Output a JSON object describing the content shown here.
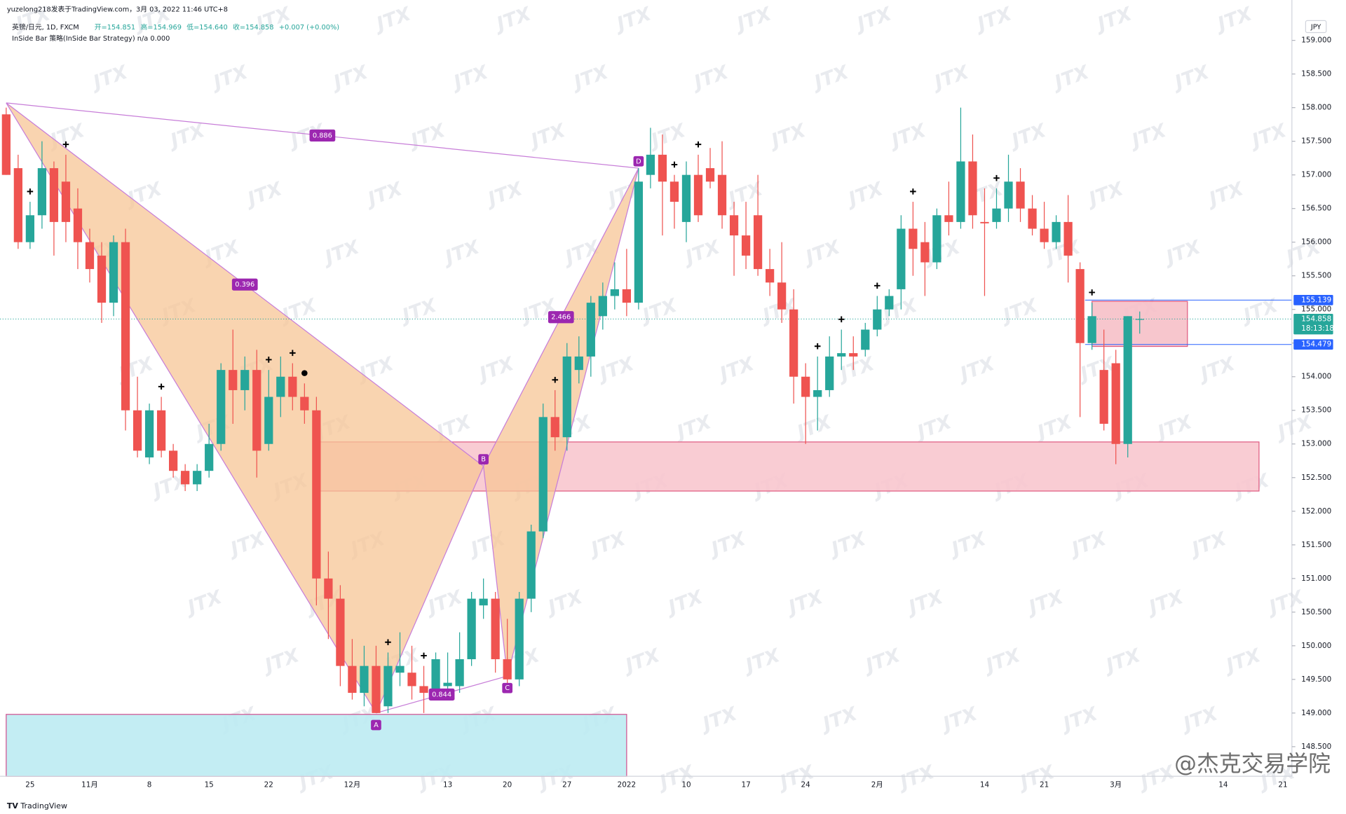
{
  "header": {
    "publisher": "yuzelong218发表于TradingView.com，3月 03, 2022 11:46 UTC+8",
    "symbol": "英镑/日元, 1D, FXCM",
    "ohlc_legend": [
      "开=154.851",
      "高=154.969",
      "低=154.640",
      "收=154.858",
      "+0.007 (+0.00%)"
    ],
    "strategy": "InSide Bar 策略(InSide Bar Strategy)  n/a  0.000",
    "currency": "JPY"
  },
  "footer": {
    "brand": "TradingView",
    "watermark": "JTX",
    "signature": "@杰克交易学院"
  },
  "chart_data": {
    "type": "candlestick",
    "categories": [
      null,
      null,
      "25",
      null,
      null,
      null,
      null,
      "11月",
      null,
      null,
      null,
      null,
      "8",
      null,
      null,
      null,
      null,
      "15",
      null,
      null,
      null,
      null,
      "22",
      null,
      null,
      null,
      null,
      null,
      null,
      "12月",
      null,
      null,
      null,
      null,
      null,
      null,
      null,
      "13",
      null,
      null,
      null,
      null,
      "20",
      null,
      null,
      null,
      null,
      "27",
      null,
      null,
      null,
      null,
      "2022",
      null,
      null,
      null,
      null,
      "10",
      null,
      null,
      null,
      null,
      "17",
      null,
      null,
      null,
      null,
      "24",
      null,
      null,
      null,
      null,
      null,
      "2月",
      null,
      null,
      null,
      null,
      null,
      null,
      null,
      null,
      "14",
      null,
      null,
      null,
      null,
      "21",
      null,
      null,
      null,
      null,
      null,
      "3月",
      null,
      null,
      null,
      null,
      null,
      null,
      null,
      null,
      "14",
      null,
      null,
      null,
      null,
      "21"
    ],
    "open": [
      157.9,
      157.1,
      156.0,
      156.4,
      157.1,
      156.9,
      156.5,
      156.0,
      155.8,
      155.1,
      156.0,
      153.5,
      152.8,
      153.5,
      152.9,
      152.6,
      152.4,
      152.6,
      153.0,
      154.1,
      153.8,
      154.1,
      153.0,
      153.7,
      154.0,
      153.7,
      153.5,
      151.0,
      150.7,
      149.7,
      149.3,
      149.7,
      149.1,
      149.6,
      149.6,
      149.4,
      149.3,
      149.4,
      149.4,
      149.8,
      150.6,
      150.7,
      149.8,
      149.5,
      150.7,
      151.7,
      153.4,
      153.1,
      154.1,
      154.3,
      154.9,
      155.2,
      155.3,
      155.1,
      157.0,
      157.3,
      156.9,
      156.3,
      157.0,
      157.1,
      157.0,
      156.4,
      156.1,
      156.4,
      155.6,
      155.4,
      155.0,
      154.0,
      153.7,
      153.8,
      154.3,
      154.35,
      154.4,
      154.7,
      155.0,
      155.3,
      156.2,
      156.0,
      155.7,
      156.4,
      156.3,
      157.2,
      156.3,
      156.3,
      156.5,
      156.9,
      156.5,
      156.2,
      156.0,
      156.3,
      155.6,
      154.5,
      154.1,
      154.2,
      153.0,
      154.851,
      null,
      null,
      null,
      null,
      null,
      null,
      null,
      null,
      null,
      null,
      null,
      null
    ],
    "high": [
      158.0,
      157.3,
      156.6,
      157.5,
      157.2,
      157.3,
      156.8,
      156.2,
      156.0,
      156.1,
      156.2,
      154.0,
      153.6,
      153.7,
      153.0,
      152.7,
      152.7,
      153.3,
      154.2,
      154.7,
      154.3,
      154.4,
      154.1,
      154.3,
      154.2,
      153.9,
      153.7,
      151.4,
      150.9,
      150.1,
      150.0,
      150.0,
      149.9,
      150.2,
      150.0,
      149.7,
      149.9,
      149.9,
      150.2,
      150.8,
      151.0,
      150.8,
      150.4,
      150.8,
      151.8,
      153.6,
      153.8,
      154.5,
      154.6,
      155.2,
      155.4,
      155.7,
      155.9,
      157.1,
      157.7,
      157.6,
      157.0,
      157.2,
      157.3,
      157.4,
      157.5,
      156.6,
      156.6,
      157.0,
      155.9,
      156.0,
      155.3,
      154.2,
      154.3,
      154.6,
      154.7,
      154.6,
      154.8,
      155.2,
      155.3,
      156.4,
      156.6,
      156.3,
      156.5,
      156.9,
      158.0,
      157.6,
      156.8,
      156.8,
      157.3,
      157.1,
      156.7,
      156.6,
      156.4,
      156.7,
      155.7,
      155.1,
      154.7,
      154.4,
      154.9,
      154.969,
      null,
      null,
      null,
      null,
      null,
      null,
      null,
      null,
      null,
      null,
      null,
      null
    ],
    "low": [
      157.0,
      155.9,
      155.9,
      156.2,
      155.8,
      156.0,
      155.6,
      155.4,
      154.8,
      154.9,
      153.2,
      152.8,
      152.7,
      152.8,
      152.5,
      152.3,
      152.3,
      152.5,
      152.9,
      153.3,
      153.5,
      152.5,
      152.9,
      153.4,
      153.5,
      153.3,
      150.6,
      150.1,
      149.4,
      149.2,
      149.1,
      149.0,
      149.0,
      149.4,
      149.2,
      149.0,
      149.2,
      149.3,
      149.3,
      149.7,
      150.4,
      149.6,
      149.3,
      149.4,
      150.5,
      151.6,
      152.9,
      152.9,
      153.9,
      154.0,
      154.7,
      155.0,
      154.9,
      155.0,
      156.8,
      156.1,
      156.2,
      156.0,
      156.3,
      156.8,
      156.2,
      155.5,
      155.6,
      155.5,
      155.2,
      154.8,
      153.6,
      153.0,
      153.2,
      153.7,
      154.1,
      154.1,
      154.3,
      154.6,
      154.9,
      155.0,
      155.5,
      155.2,
      155.6,
      156.1,
      156.2,
      156.2,
      155.2,
      156.2,
      156.3,
      156.3,
      156.1,
      155.9,
      155.9,
      155.4,
      153.4,
      154.4,
      153.2,
      152.7,
      152.8,
      154.64,
      null,
      null,
      null,
      null,
      null,
      null,
      null,
      null,
      null,
      null,
      null,
      null
    ],
    "close": [
      157.0,
      156.0,
      156.4,
      157.1,
      156.3,
      156.3,
      156.0,
      155.6,
      155.1,
      156.0,
      153.5,
      152.9,
      153.5,
      152.9,
      152.6,
      152.4,
      152.6,
      153.0,
      154.1,
      153.8,
      154.1,
      152.9,
      153.7,
      154.0,
      153.7,
      153.5,
      151.0,
      150.7,
      149.7,
      149.3,
      149.7,
      149.0,
      149.7,
      149.7,
      149.4,
      149.3,
      149.8,
      149.45,
      149.8,
      150.7,
      150.7,
      149.8,
      149.5,
      150.7,
      151.7,
      153.4,
      153.1,
      154.3,
      154.3,
      155.1,
      155.2,
      155.3,
      155.1,
      156.9,
      157.3,
      156.9,
      156.6,
      157.0,
      156.4,
      156.9,
      156.4,
      156.1,
      155.8,
      155.6,
      155.4,
      155.0,
      154.0,
      153.7,
      153.8,
      154.3,
      154.35,
      154.3,
      154.7,
      155.0,
      155.2,
      156.2,
      155.9,
      155.7,
      156.4,
      156.3,
      157.2,
      156.4,
      156.28,
      156.5,
      156.9,
      156.5,
      156.2,
      156.0,
      156.3,
      155.8,
      154.5,
      154.9,
      153.3,
      153.0,
      154.9,
      154.858,
      null,
      null,
      null,
      null,
      null,
      null,
      null,
      null,
      null,
      null,
      null,
      null
    ],
    "up_color": "#26a69a",
    "down_color": "#ef5350",
    "ylim": [
      148.06,
      159.6
    ],
    "yticks": [
      {
        "value": 148.5,
        "label": "148.500"
      },
      {
        "value": 149,
        "label": "149.000"
      },
      {
        "value": 149.5,
        "label": "149.500"
      },
      {
        "value": 150,
        "label": "150.000"
      },
      {
        "value": 150.5,
        "label": "150.500"
      },
      {
        "value": 151,
        "label": "151.000"
      },
      {
        "value": 151.5,
        "label": "151.500"
      },
      {
        "value": 152,
        "label": "152.000"
      },
      {
        "value": 152.5,
        "label": "152.500"
      },
      {
        "value": 153,
        "label": "153.000"
      },
      {
        "value": 153.5,
        "label": "153.500"
      },
      {
        "value": 154,
        "label": "154.000"
      },
      {
        "value": 154.5,
        "label": "154.500"
      },
      {
        "value": 155,
        "label": "155.000"
      },
      {
        "value": 155.5,
        "label": "155.500"
      },
      {
        "value": 156,
        "label": "156.000"
      },
      {
        "value": 156.5,
        "label": "156.500"
      },
      {
        "value": 157,
        "label": "157.000"
      },
      {
        "value": 157.5,
        "label": "157.500"
      },
      {
        "value": 158,
        "label": "158.000"
      },
      {
        "value": 158.5,
        "label": "158.500"
      },
      {
        "value": 159,
        "label": "159.000"
      }
    ],
    "grid": false,
    "pattern": {
      "points": [
        {
          "index": 0,
          "price": 158.07
        },
        {
          "label": "A",
          "index": 31,
          "price": 149.0
        },
        {
          "label": "B",
          "index": 40,
          "price": 152.67
        },
        {
          "label": "C",
          "index": 42,
          "price": 149.55
        },
        {
          "label": "D",
          "index": 53,
          "price": 157.1
        }
      ],
      "ratios": [
        0.396,
        0.886,
        2.466,
        0.844
      ],
      "fill": "#f7c595",
      "line_color": "#c77dd8"
    },
    "zones": [
      {
        "from": 26,
        "to": 105,
        "top": 153.03,
        "bottom": 152.3,
        "fill": "#f8c6ce",
        "border": "#e05a80"
      },
      {
        "from": 0,
        "to": 52,
        "top": 148.98,
        "bottom": 148.06,
        "fill": "#bdebf2",
        "border": "#d05090"
      },
      {
        "from": 91,
        "to": 99,
        "top": 155.12,
        "bottom": 154.45,
        "fill": "#f6c0c8",
        "border": "#e05a80"
      }
    ],
    "signal_plus": [
      2,
      5,
      13,
      22,
      24,
      32,
      35,
      46,
      56,
      58,
      68,
      70,
      73,
      76,
      83,
      91
    ],
    "signal_dot": [
      25
    ],
    "price_labels": [
      {
        "value": 155.139,
        "color": "#2962ff"
      },
      {
        "value": 154.479,
        "color": "#2962ff"
      },
      {
        "value": 154.858,
        "color": "#26a69a",
        "countdown": "18:13:18"
      }
    ]
  }
}
